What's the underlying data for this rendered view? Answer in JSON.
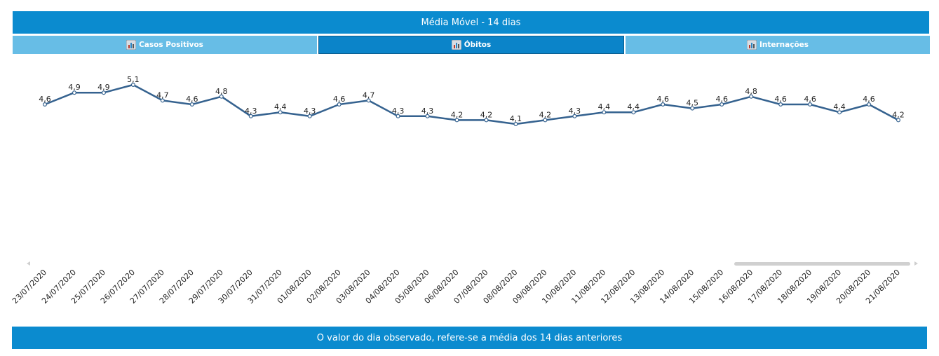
{
  "header": {
    "title": "Média Móvel - 14 dias"
  },
  "tabs": [
    {
      "label": "Casos Positivos",
      "icon": "bar-chart-icon",
      "active": false
    },
    {
      "label": "Óbitos",
      "icon": "bar-chart-icon",
      "active": true
    },
    {
      "label": "Internações",
      "icon": "bar-chart-icon",
      "active": false
    }
  ],
  "footer": {
    "note": "O valor do dia observado, refere-se a média dos 14 dias anteriores"
  },
  "colors": {
    "banner": "#0b8bcf",
    "tab_inactive": "#67bde6",
    "tab_active": "#0b84c9",
    "line": "#35628f"
  },
  "chart_data": {
    "type": "line",
    "x": [
      "23/07/2020",
      "24/07/2020",
      "25/07/2020",
      "26/07/2020",
      "27/07/2020",
      "28/07/2020",
      "29/07/2020",
      "30/07/2020",
      "31/07/2020",
      "01/08/2020",
      "02/08/2020",
      "03/08/2020",
      "04/08/2020",
      "05/08/2020",
      "06/08/2020",
      "07/08/2020",
      "08/08/2020",
      "09/08/2020",
      "10/08/2020",
      "11/08/2020",
      "12/08/2020",
      "13/08/2020",
      "14/08/2020",
      "15/08/2020",
      "16/08/2020",
      "17/08/2020",
      "18/08/2020",
      "19/08/2020",
      "20/08/2020",
      "21/08/2020"
    ],
    "values": [
      4.6,
      4.9,
      4.9,
      5.1,
      4.7,
      4.6,
      4.8,
      4.3,
      4.4,
      4.3,
      4.6,
      4.7,
      4.3,
      4.3,
      4.2,
      4.2,
      4.1,
      4.2,
      4.3,
      4.4,
      4.4,
      4.6,
      4.5,
      4.6,
      4.8,
      4.6,
      4.6,
      4.4,
      4.6,
      4.2
    ],
    "labels": [
      "4,6",
      "4,9",
      "4,9",
      "5,1",
      "4,7",
      "4,6",
      "4,8",
      "4,3",
      "4,4",
      "4,3",
      "4,6",
      "4,7",
      "4,3",
      "4,3",
      "4,2",
      "4,2",
      "4,1",
      "4,2",
      "4,3",
      "4,4",
      "4,4",
      "4,6",
      "4,5",
      "4,6",
      "4,8",
      "4,6",
      "4,6",
      "4,4",
      "4,6",
      "4,2"
    ],
    "grid": false,
    "legend": "none",
    "scrollbar": true
  }
}
